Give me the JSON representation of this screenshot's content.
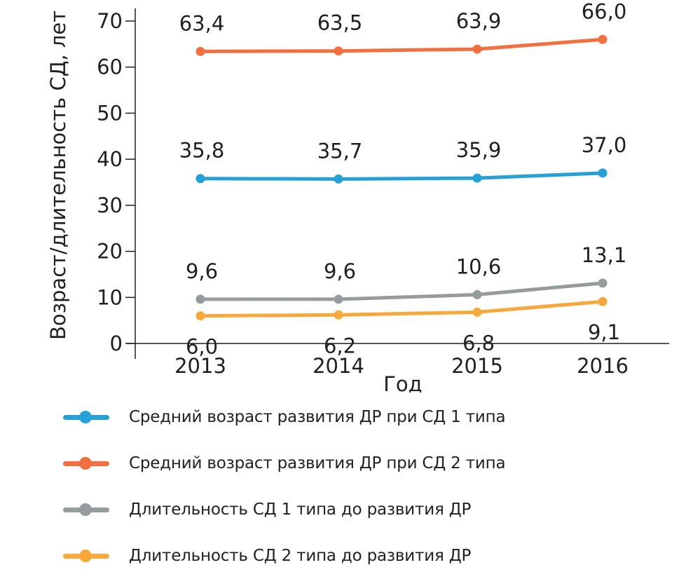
{
  "chart_data": {
    "type": "line",
    "title": "",
    "xlabel": "Год",
    "ylabel": "Возраст/длительность СД, лет",
    "x": [
      "2013",
      "2014",
      "2015",
      "2016"
    ],
    "ylim": [
      0,
      70
    ],
    "yticks": [
      "0",
      "10",
      "20",
      "30",
      "40",
      "50",
      "60",
      "70"
    ],
    "grid": false,
    "legend_position": "bottom",
    "series": [
      {
        "name": "Средний возраст развития ДР при СД 1 типа",
        "color": "#27a0d8",
        "values": [
          35.8,
          35.7,
          35.9,
          37.0
        ],
        "labels": [
          "35,8",
          "35,7",
          "35,9",
          "37,0"
        ],
        "label_position": "above"
      },
      {
        "name": "Средний возраст развития ДР при СД 2 типа",
        "color": "#f26f3f",
        "values": [
          63.4,
          63.5,
          63.9,
          66.0
        ],
        "labels": [
          "63,4",
          "63,5",
          "63,9",
          "66,0"
        ],
        "label_position": "above"
      },
      {
        "name": "Длительность СД 1 типа до развития ДР",
        "color": "#959c9e",
        "values": [
          9.6,
          9.6,
          10.6,
          13.1
        ],
        "labels": [
          "9,6",
          "9,6",
          "10,6",
          "13,1"
        ],
        "label_position": "above"
      },
      {
        "name": "Длительность СД 2 типа до развития ДР",
        "color": "#f8a83a",
        "values": [
          6.0,
          6.2,
          6.8,
          9.1
        ],
        "labels": [
          "6,0",
          "6,2",
          "6,8",
          "9,1"
        ],
        "label_position": "below"
      }
    ]
  },
  "legend": {
    "items": [
      {
        "label": "Средний возраст развития ДР при СД 1 типа",
        "color": "#27a0d8"
      },
      {
        "label": "Средний возраст развития ДР при СД 2 типа",
        "color": "#f26f3f"
      },
      {
        "label": "Длительность СД 1 типа до развития ДР",
        "color": "#959c9e"
      },
      {
        "label": "Длительность СД 2 типа до развития ДР",
        "color": "#f8a83a"
      }
    ]
  }
}
